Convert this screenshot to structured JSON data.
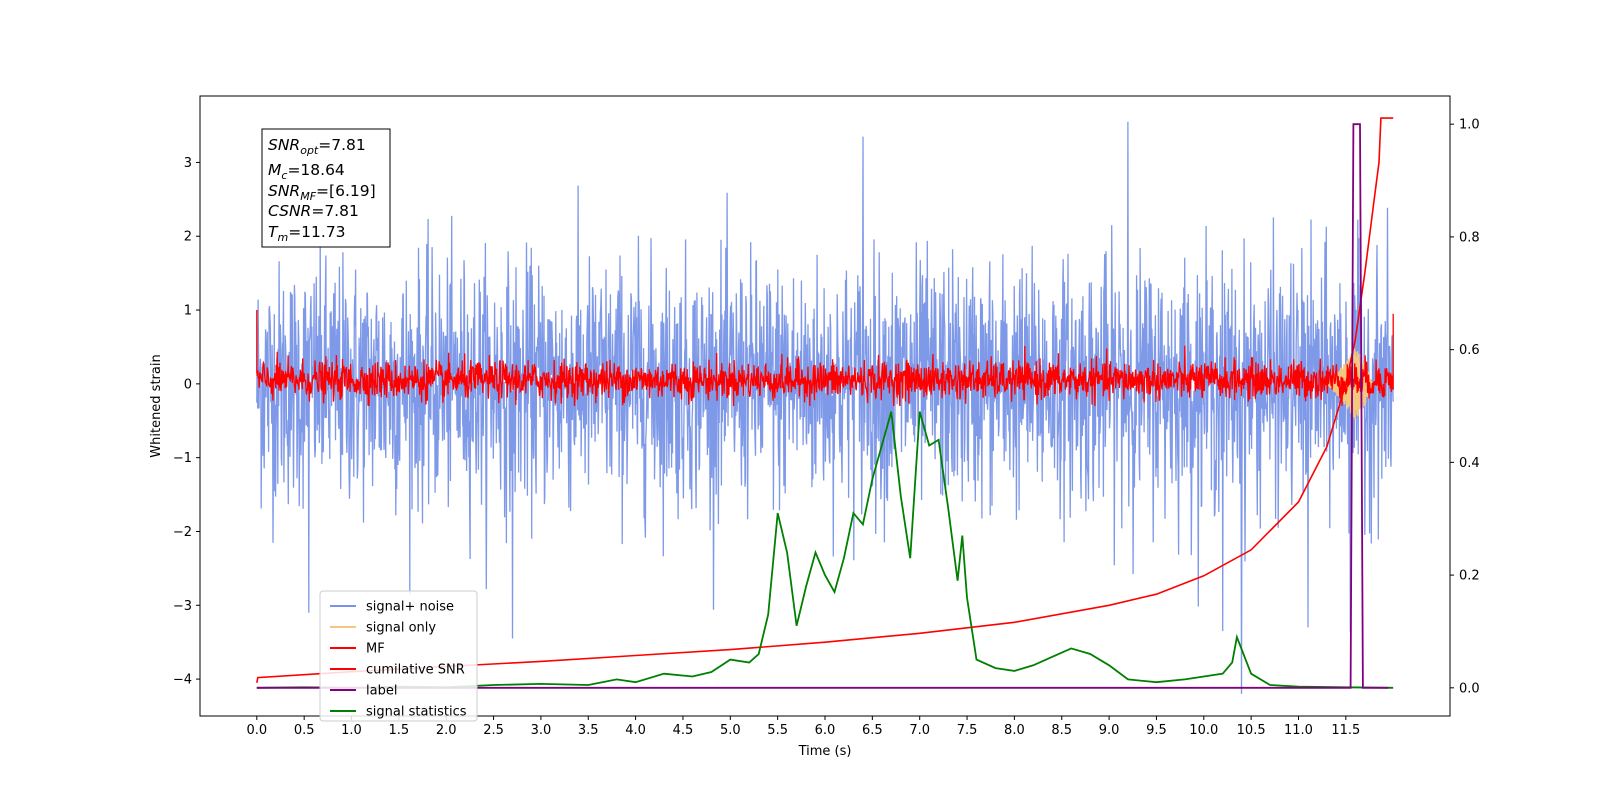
{
  "chart_data": {
    "type": "line",
    "title": "",
    "xlabel": "Time (s)",
    "ylabel": "Whitened strain",
    "ylabel_right": "",
    "xlim": [
      -0.6,
      12.6
    ],
    "ylim": [
      -4.5,
      3.9
    ],
    "y2lim": [
      -0.05,
      1.05
    ],
    "grid": false,
    "legend_position": "lower-left",
    "x_ticks": [
      "0.0",
      "0.5",
      "1.0",
      "1.5",
      "2.0",
      "2.5",
      "3.0",
      "3.5",
      "4.0",
      "4.5",
      "5.0",
      "5.5",
      "6.0",
      "6.5",
      "7.0",
      "7.5",
      "8.0",
      "8.5",
      "9.0",
      "9.5",
      "10.0",
      "10.5",
      "11.0",
      "11.5"
    ],
    "y_ticks": [
      "3",
      "2",
      "1",
      "0",
      "−1",
      "−2",
      "−3",
      "−4"
    ],
    "y2_ticks": [
      "1.0",
      "0.8",
      "0.6",
      "0.4",
      "0.2",
      "0.0"
    ],
    "annotation": {
      "snr_opt": "SNR",
      "snr_opt_sub": "opt",
      "snr_opt_val": "=7.81",
      "mc": "M",
      "mc_sub": "c",
      "mc_val": "=18.64",
      "snr_mf": "SNR",
      "snr_mf_sub": "MF",
      "snr_mf_val": "=[6.19]",
      "csnr": "CSNR",
      "csnr_val": "=7.81",
      "tm": "T",
      "tm_sub": "m",
      "tm_val": "=11.73"
    },
    "series": [
      {
        "name": "signal+ noise",
        "color": "#7893e8",
        "axis": "left",
        "style": "noise band",
        "x_range": [
          0.0,
          12.0
        ],
        "approx_envelope": [
          -2.5,
          2.5
        ],
        "extreme_spikes": [
          {
            "x": 0.55,
            "y": -3.1
          },
          {
            "x": 2.7,
            "y": -3.45
          },
          {
            "x": 6.4,
            "y": 3.35
          },
          {
            "x": 9.2,
            "y": 3.55
          },
          {
            "x": 10.2,
            "y": -3.35
          },
          {
            "x": 10.4,
            "y": -4.2
          },
          {
            "x": 11.1,
            "y": -3.3
          },
          {
            "x": 11.55,
            "y": -3.35
          }
        ]
      },
      {
        "name": "signal only",
        "color": "#f5c77e",
        "axis": "left",
        "style": "chirp",
        "points": [
          [
            11.3,
            0.0
          ],
          [
            11.5,
            0.3
          ],
          [
            11.6,
            0.5
          ],
          [
            11.7,
            0.3
          ],
          [
            11.78,
            0.0
          ]
        ]
      },
      {
        "name": "MF",
        "color": "#ff0000",
        "axis": "left",
        "style": "noise band",
        "x_range": [
          0.0,
          12.0
        ],
        "approx_envelope": [
          -0.25,
          0.45
        ],
        "start_value": 1.0
      },
      {
        "name": "cumilative SNR",
        "color": "#ff0000",
        "axis": "left",
        "points": [
          [
            0.0,
            -4.05
          ],
          [
            0.01,
            -3.98
          ],
          [
            1.0,
            -3.9
          ],
          [
            2.0,
            -3.83
          ],
          [
            3.0,
            -3.76
          ],
          [
            4.0,
            -3.68
          ],
          [
            5.0,
            -3.6
          ],
          [
            6.0,
            -3.5
          ],
          [
            7.0,
            -3.38
          ],
          [
            8.0,
            -3.23
          ],
          [
            9.0,
            -3.0
          ],
          [
            9.5,
            -2.85
          ],
          [
            10.0,
            -2.6
          ],
          [
            10.5,
            -2.25
          ],
          [
            11.0,
            -1.6
          ],
          [
            11.3,
            -0.85
          ],
          [
            11.5,
            0.0
          ],
          [
            11.6,
            0.6
          ],
          [
            11.7,
            1.5
          ],
          [
            11.8,
            2.5
          ],
          [
            11.85,
            3.0
          ],
          [
            11.87,
            3.6
          ],
          [
            12.0,
            3.6
          ]
        ]
      },
      {
        "name": "label",
        "color": "#800080",
        "axis": "right",
        "points": [
          [
            0.0,
            0.0
          ],
          [
            11.55,
            0.0
          ],
          [
            11.58,
            1.0
          ],
          [
            11.65,
            1.0
          ],
          [
            11.68,
            0.0
          ],
          [
            11.95,
            0.0
          ]
        ]
      },
      {
        "name": "signal statistics",
        "color": "#008000",
        "axis": "right",
        "points": [
          [
            0.0,
            0.0
          ],
          [
            0.5,
            0.001
          ],
          [
            1.0,
            0.0
          ],
          [
            1.5,
            0.002
          ],
          [
            2.0,
            0.001
          ],
          [
            2.5,
            0.005
          ],
          [
            3.0,
            0.007
          ],
          [
            3.5,
            0.005
          ],
          [
            3.8,
            0.015
          ],
          [
            4.0,
            0.01
          ],
          [
            4.3,
            0.025
          ],
          [
            4.6,
            0.02
          ],
          [
            4.8,
            0.028
          ],
          [
            5.0,
            0.05
          ],
          [
            5.2,
            0.045
          ],
          [
            5.3,
            0.06
          ],
          [
            5.4,
            0.13
          ],
          [
            5.5,
            0.31
          ],
          [
            5.6,
            0.24
          ],
          [
            5.7,
            0.11
          ],
          [
            5.8,
            0.18
          ],
          [
            5.9,
            0.24
          ],
          [
            6.0,
            0.2
          ],
          [
            6.1,
            0.17
          ],
          [
            6.2,
            0.23
          ],
          [
            6.3,
            0.31
          ],
          [
            6.4,
            0.29
          ],
          [
            6.5,
            0.37
          ],
          [
            6.6,
            0.43
          ],
          [
            6.7,
            0.49
          ],
          [
            6.8,
            0.34
          ],
          [
            6.9,
            0.23
          ],
          [
            7.0,
            0.49
          ],
          [
            7.1,
            0.43
          ],
          [
            7.2,
            0.44
          ],
          [
            7.3,
            0.32
          ],
          [
            7.4,
            0.19
          ],
          [
            7.45,
            0.27
          ],
          [
            7.5,
            0.16
          ],
          [
            7.6,
            0.05
          ],
          [
            7.8,
            0.035
          ],
          [
            8.0,
            0.03
          ],
          [
            8.2,
            0.04
          ],
          [
            8.4,
            0.055
          ],
          [
            8.6,
            0.07
          ],
          [
            8.8,
            0.06
          ],
          [
            9.0,
            0.04
          ],
          [
            9.2,
            0.015
          ],
          [
            9.5,
            0.01
          ],
          [
            9.8,
            0.015
          ],
          [
            10.0,
            0.02
          ],
          [
            10.2,
            0.025
          ],
          [
            10.3,
            0.045
          ],
          [
            10.35,
            0.09
          ],
          [
            10.5,
            0.025
          ],
          [
            10.7,
            0.005
          ],
          [
            11.0,
            0.002
          ],
          [
            11.5,
            0.001
          ],
          [
            12.0,
            0.0
          ]
        ]
      }
    ]
  }
}
